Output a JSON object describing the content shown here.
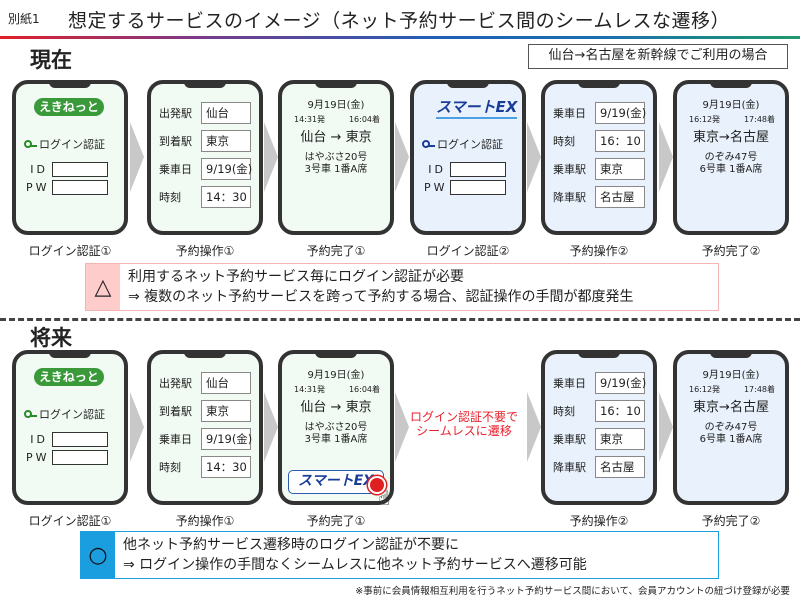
{
  "header": {
    "doc_label": "別紙1",
    "title": "想定するサービスのイメージ（ネット予約サービス間のシームレスな遷移）"
  },
  "scenario": "仙台→名古屋を新幹線でご利用の場合",
  "colors": {
    "green_screen": "#f1faf3",
    "blue_screen": "#e8f1fc",
    "warn": "#ffcccc",
    "ok": "#1a9ee0",
    "red_text": "#e8202a"
  },
  "current": {
    "heading": "現在",
    "phones": [
      {
        "kind": "login",
        "logo": "えきねっと",
        "login_label": "ログイン認証",
        "id_label": "ID",
        "pw_label": "PW",
        "caption": "ログイン認証①"
      },
      {
        "kind": "form",
        "rows": [
          {
            "label": "出発駅",
            "value": "仙台"
          },
          {
            "label": "到着駅",
            "value": "東京"
          },
          {
            "label": "乗車日",
            "value": "9/19(金)"
          },
          {
            "label": "時刻",
            "value": "14：30"
          }
        ],
        "caption": "予約操作①"
      },
      {
        "kind": "done",
        "date": "9月19日(金)",
        "dep": "14:31発",
        "arr": "16:04着",
        "route": "仙台 → 東京",
        "train": "はやぶさ20号",
        "seat": "3号車 1番A席",
        "caption": "予約完了①"
      },
      {
        "kind": "login",
        "logo": "スマートEX",
        "login_label": "ログイン認証",
        "id_label": "ID",
        "pw_label": "PW",
        "caption": "ログイン認証②"
      },
      {
        "kind": "form",
        "rows": [
          {
            "label": "乗車日",
            "value": "9/19(金)"
          },
          {
            "label": "時刻",
            "value": "16：10"
          },
          {
            "label": "乗車駅",
            "value": "東京"
          },
          {
            "label": "降車駅",
            "value": "名古屋"
          }
        ],
        "caption": "予約操作②"
      },
      {
        "kind": "done",
        "date": "9月19日(金)",
        "dep": "16:12発",
        "arr": "17:48着",
        "route": "東京→名古屋",
        "train": "のぞみ47号",
        "seat": "6号車 1番A席",
        "caption": "予約完了②"
      }
    ],
    "note_symbol": "△",
    "note_lines": [
      "利用するネット予約サービス毎にログイン認証が必要",
      "⇒  複数のネット予約サービスを跨って予約する場合、認証操作の手間が都度発生"
    ]
  },
  "future": {
    "heading": "将来",
    "phones": [
      {
        "kind": "login",
        "logo": "えきねっと",
        "login_label": "ログイン認証",
        "id_label": "ID",
        "pw_label": "PW",
        "caption": "ログイン認証①"
      },
      {
        "kind": "form",
        "rows": [
          {
            "label": "出発駅",
            "value": "仙台"
          },
          {
            "label": "到着駅",
            "value": "東京"
          },
          {
            "label": "乗車日",
            "value": "9/19(金)"
          },
          {
            "label": "時刻",
            "value": "14：30"
          }
        ],
        "caption": "予約操作①"
      },
      {
        "kind": "done",
        "date": "9月19日(金)",
        "dep": "14:31発",
        "arr": "16:04着",
        "route": "仙台 → 東京",
        "train": "はやぶさ20号",
        "seat": "3号車 1番A席",
        "button": "スマートEX",
        "caption": "予約完了①"
      },
      {
        "kind": "form",
        "rows": [
          {
            "label": "乗車日",
            "value": "9/19(金)"
          },
          {
            "label": "時刻",
            "value": "16：10"
          },
          {
            "label": "乗車駅",
            "value": "東京"
          },
          {
            "label": "降車駅",
            "value": "名古屋"
          }
        ],
        "caption": "予約操作②"
      },
      {
        "kind": "done",
        "date": "9月19日(金)",
        "dep": "16:12発",
        "arr": "17:48着",
        "route": "東京→名古屋",
        "train": "のぞみ47号",
        "seat": "6号車 1番A席",
        "caption": "予約完了②"
      }
    ],
    "transition_msg": [
      "ログイン認証不要で",
      "シームレスに遷移"
    ],
    "note_symbol": "○",
    "note_lines": [
      "他ネット予約サービス遷移時のログイン認証が不要に",
      "⇒  ログイン操作の手間なくシームレスに他ネット予約サービスへ遷移可能"
    ]
  },
  "footnote": "※事前に会員情報相互利用を行うネット予約サービス間において、会員アカウントの紐づけ登録が必要"
}
